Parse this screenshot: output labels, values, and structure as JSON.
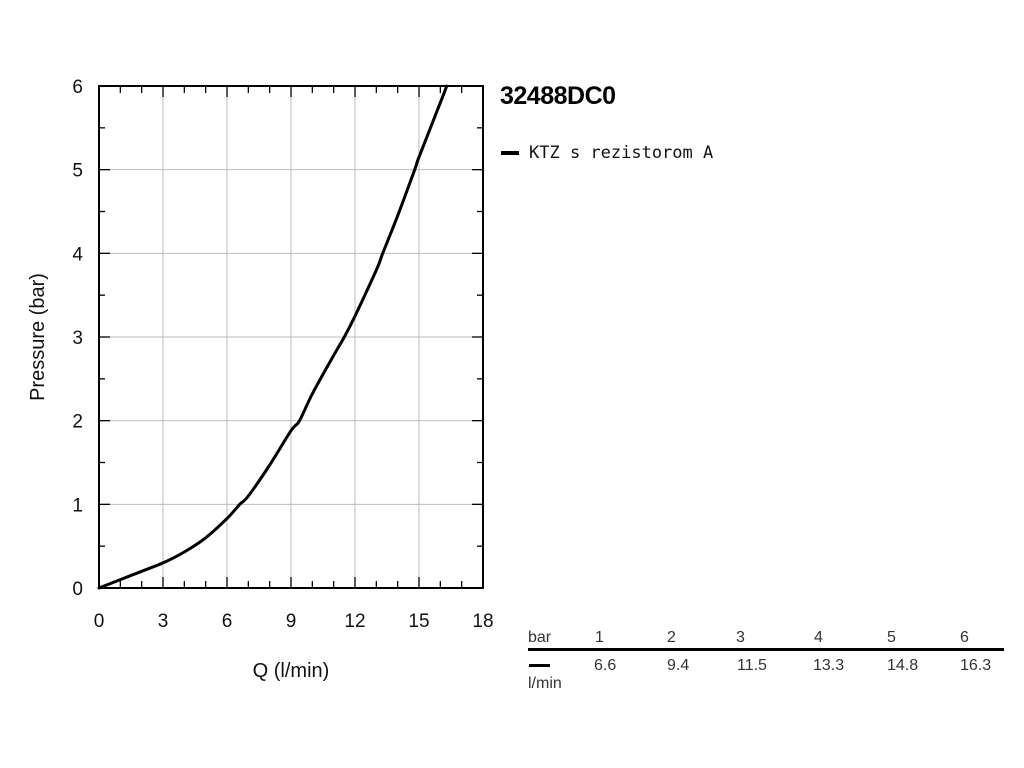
{
  "chart_data": {
    "type": "line",
    "title": "32488DC0",
    "xlabel": "Q (l/min)",
    "ylabel": "Pressure (bar)",
    "xlim": [
      0,
      18
    ],
    "ylim": [
      0,
      6
    ],
    "x_ticks": [
      "0",
      "3",
      "6",
      "9",
      "12",
      "15",
      "18"
    ],
    "y_ticks": [
      "0",
      "1",
      "2",
      "3",
      "4",
      "5",
      "6"
    ],
    "grid": true,
    "legend_position": "top-right",
    "series": [
      {
        "name": "KTZ s rezistorom A",
        "color": "#000000",
        "x": [
          0,
          1,
          2,
          3,
          4,
          5,
          6,
          6.6,
          7,
          8,
          9,
          9.4,
          10,
          11,
          11.5,
          12,
          13,
          13.3,
          14,
          14.8,
          15,
          16,
          16.3
        ],
        "y": [
          0,
          0.1,
          0.2,
          0.3,
          0.43,
          0.6,
          0.83,
          1.0,
          1.1,
          1.47,
          1.88,
          2.0,
          2.32,
          2.78,
          3.0,
          3.25,
          3.8,
          4.0,
          4.45,
          5.0,
          5.15,
          5.8,
          6.0
        ]
      }
    ],
    "table": {
      "header_unit": "bar",
      "pressures": [
        "1",
        "2",
        "3",
        "4",
        "5",
        "6"
      ],
      "row_unit": "l/min",
      "flows": [
        "6.6",
        "9.4",
        "11.5",
        "13.3",
        "14.8",
        "16.3"
      ]
    }
  }
}
